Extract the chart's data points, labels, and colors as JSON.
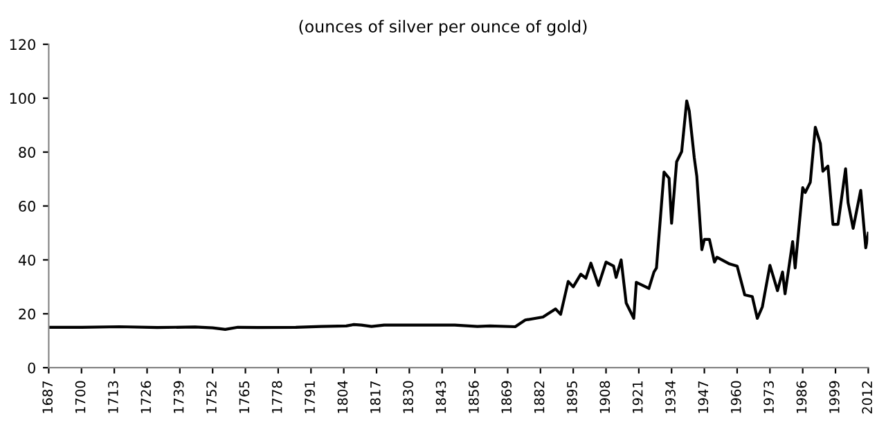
{
  "chart_data": {
    "type": "line",
    "subtitle": "(ounces of silver per ounce of gold)",
    "x": [
      1687,
      1700,
      1715,
      1730,
      1745,
      1752,
      1757,
      1762,
      1770,
      1785,
      1795,
      1805,
      1808,
      1811,
      1815,
      1820,
      1848,
      1857,
      1862,
      1872,
      1876,
      1883,
      1888,
      1890,
      1893,
      1895,
      1898,
      1900,
      1902,
      1905,
      1908,
      1911,
      1912,
      1914,
      1916,
      1919,
      1920,
      1925,
      1927,
      1928,
      1931,
      1933,
      1934,
      1936,
      1938,
      1940,
      1941,
      1943,
      1944,
      1946,
      1947,
      1949,
      1951,
      1952,
      1957,
      1960,
      1963,
      1966,
      1968,
      1970,
      1973,
      1976,
      1978,
      1979,
      1982,
      1983,
      1986,
      1987,
      1989,
      1991,
      1993,
      1994,
      1996,
      1998,
      2000,
      2003,
      2004,
      2006,
      2009,
      2011,
      2012
    ],
    "series": [
      {
        "color": "#000000",
        "values": [
          15.0,
          15.0,
          15.2,
          14.9,
          15.1,
          14.8,
          14.2,
          15.0,
          14.9,
          15.0,
          15.3,
          15.5,
          16.0,
          15.8,
          15.3,
          15.8,
          15.8,
          15.3,
          15.5,
          15.2,
          17.7,
          18.8,
          21.8,
          19.8,
          32,
          30,
          34.7,
          33.2,
          38.8,
          30.5,
          39.2,
          37.7,
          33.5,
          40,
          24,
          18.3,
          31.7,
          29.4,
          35.5,
          37,
          72.6,
          70.3,
          53.6,
          76.4,
          80.2,
          99,
          95.3,
          77.9,
          71,
          43.8,
          47.6,
          47.6,
          39.2,
          41,
          38.5,
          37.7,
          27,
          26.4,
          18.3,
          22.6,
          38,
          28.6,
          35.5,
          27.4,
          46.8,
          37,
          66.8,
          65,
          68.8,
          89.2,
          83.2,
          72.9,
          74.8,
          53.2,
          53.2,
          73.8,
          61.2,
          51.7,
          65.8,
          44.5,
          49.9
        ]
      }
    ],
    "xlim": [
      1687,
      2012
    ],
    "xticks": [
      1687,
      1700,
      1713,
      1726,
      1739,
      1752,
      1765,
      1778,
      1791,
      1804,
      1817,
      1830,
      1843,
      1856,
      1869,
      1882,
      1895,
      1908,
      1921,
      1934,
      1947,
      1960,
      1973,
      1986,
      1999,
      2012
    ],
    "ylim": [
      0,
      120
    ],
    "yticks": [
      0,
      20,
      40,
      60,
      80,
      100,
      120
    ],
    "grid": false,
    "marker": "none",
    "line_style": "solid"
  }
}
